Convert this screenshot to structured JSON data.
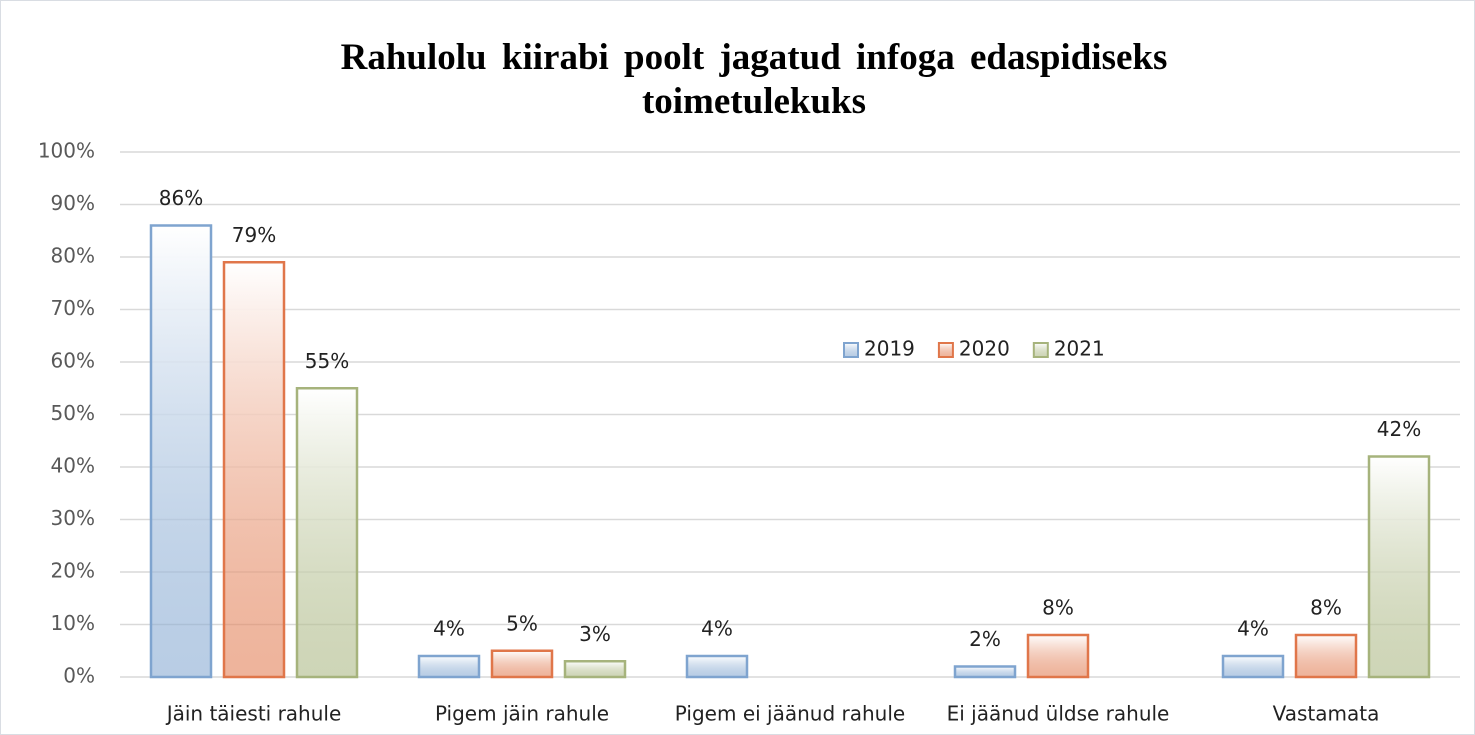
{
  "chart_data": {
    "type": "bar",
    "title": "Rahulolu kiirabi poolt jagatud infoga edaspidiseks toimetulekuks",
    "categories": [
      "Jäin täiesti rahule",
      "Pigem jäin rahule",
      "Pigem ei jäänud rahule",
      "Ei jäänud üldse rahule",
      "Vastamata"
    ],
    "series": [
      {
        "name": "2019",
        "color": "#7fa4cf",
        "values": [
          86,
          4,
          4,
          2,
          4
        ],
        "value_labels": [
          "86%",
          "4%",
          "4%",
          "2%",
          "4%"
        ]
      },
      {
        "name": "2020",
        "color": "#e0764a",
        "values": [
          79,
          5,
          null,
          8,
          8
        ],
        "value_labels": [
          "79%",
          "5%",
          null,
          "8%",
          "8%"
        ]
      },
      {
        "name": "2021",
        "color": "#a6b37c",
        "values": [
          55,
          3,
          null,
          null,
          42
        ],
        "value_labels": [
          "55%",
          "3%",
          null,
          null,
          "42%"
        ]
      }
    ],
    "ylim": [
      0,
      100
    ],
    "yticks": [
      {
        "value": 0,
        "label": "0%"
      },
      {
        "value": 10,
        "label": "10%"
      },
      {
        "value": 20,
        "label": "20%"
      },
      {
        "value": 30,
        "label": "30%"
      },
      {
        "value": 40,
        "label": "40%"
      },
      {
        "value": 50,
        "label": "50%"
      },
      {
        "value": 60,
        "label": "60%"
      },
      {
        "value": 70,
        "label": "70%"
      },
      {
        "value": 80,
        "label": "80%"
      },
      {
        "value": 90,
        "label": "90%"
      },
      {
        "value": 100,
        "label": "100%"
      }
    ],
    "grid": true,
    "legend": "center"
  }
}
